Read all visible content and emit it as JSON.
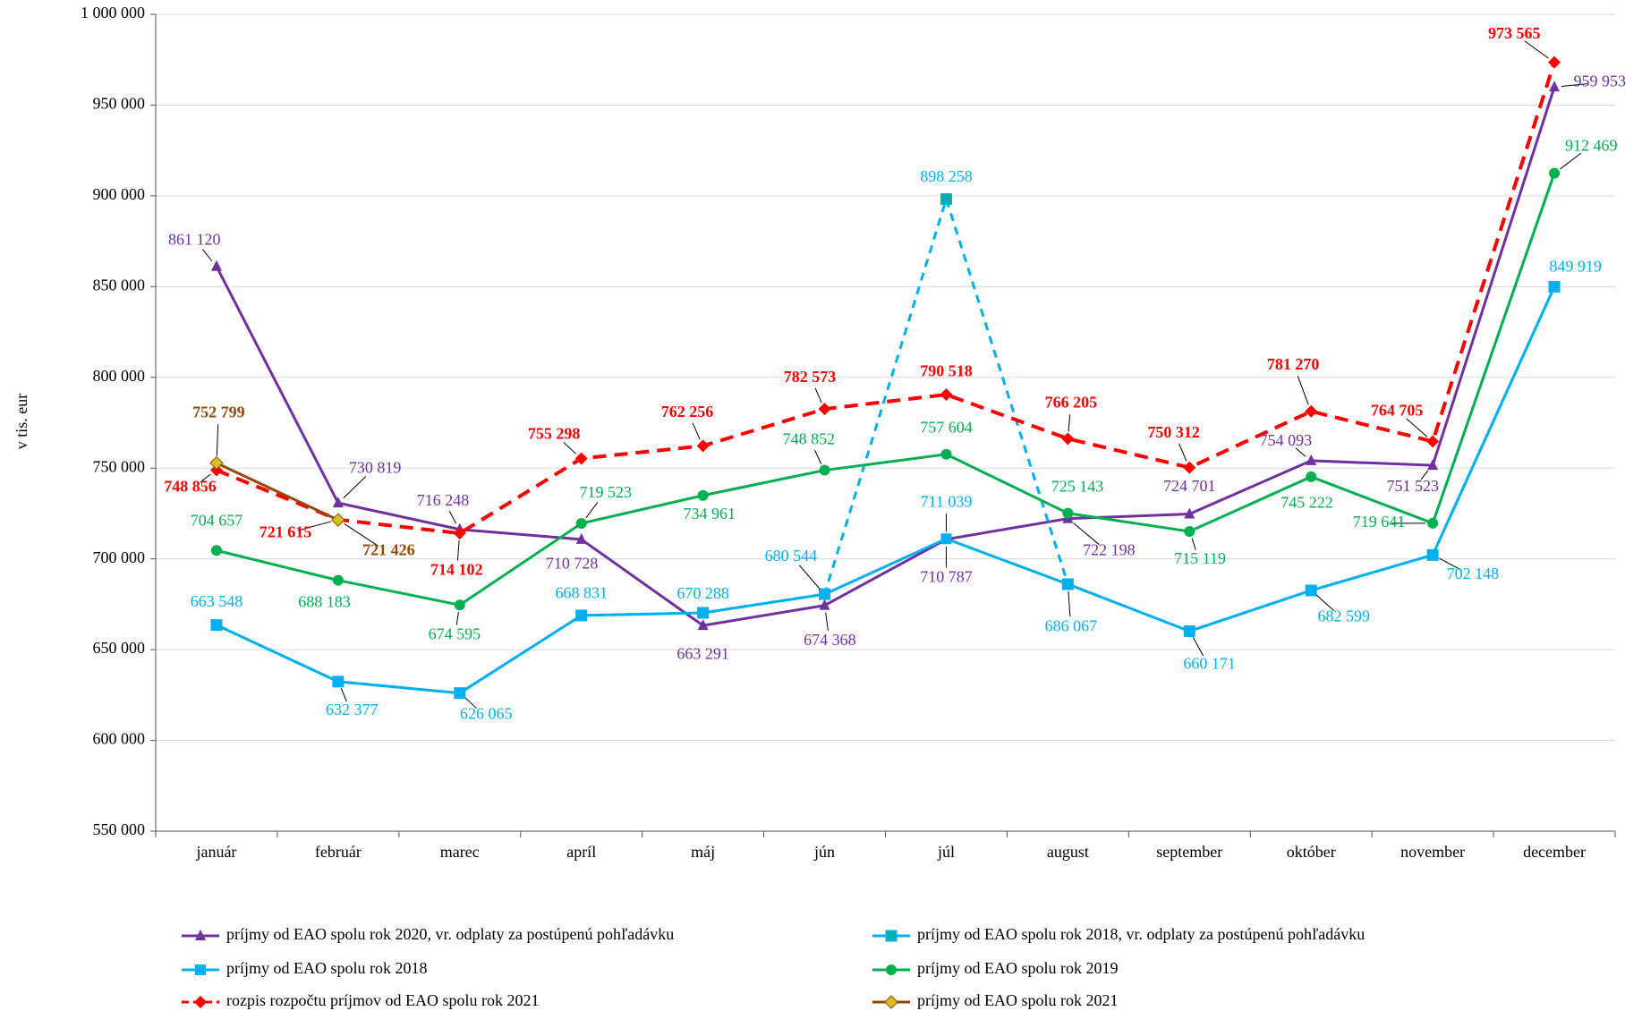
{
  "chart_data": {
    "type": "line",
    "y_label": "v tis. eur",
    "categories": [
      "január",
      "február",
      "marec",
      "apríl",
      "máj",
      "jún",
      "júl",
      "august",
      "september",
      "október",
      "november",
      "december"
    ],
    "ylim": [
      550000,
      1000000
    ],
    "yticks": [
      {
        "value": 550000,
        "label": "550 000"
      },
      {
        "value": 600000,
        "label": "600 000"
      },
      {
        "value": 650000,
        "label": "650 000"
      },
      {
        "value": 700000,
        "label": "700 000"
      },
      {
        "value": 750000,
        "label": "750 000"
      },
      {
        "value": 800000,
        "label": "800 000"
      },
      {
        "value": 850000,
        "label": "850 000"
      },
      {
        "value": 900000,
        "label": "900 000"
      },
      {
        "value": 950000,
        "label": "950 000"
      },
      {
        "value": 1000000,
        "label": "1 000 000"
      }
    ],
    "grid": true,
    "legend": "bottom",
    "series": [
      {
        "name": "príjmy od EAO spolu rok 2020, vr. odplaty za postúpenú pohľadávku",
        "color": "#7030a0",
        "marker": "triangle",
        "dashed": false,
        "bold_labels": false,
        "values": [
          861120,
          730819,
          716248,
          710728,
          663291,
          674368,
          710787,
          722198,
          724701,
          754093,
          751523,
          959953
        ],
        "value_labels": [
          "861 120",
          "730 819",
          "716 248",
          "710 728",
          "663 291",
          "674 368",
          "710 787",
          "722 198",
          "724 701",
          "754 093",
          "751 523",
          "959 953"
        ]
      },
      {
        "name": "príjmy od EAO spolu rok 2018, vr. odplaty za postúpenú pohľadávku",
        "color": "#00b0f0",
        "marker_color": "#00b0b0",
        "marker": "square",
        "dashed": true,
        "bold_labels": false,
        "values": [
          663548,
          632377,
          626065,
          668831,
          670288,
          680544,
          898258,
          686067,
          660171,
          682599,
          702148,
          849919
        ],
        "value_labels": [
          null,
          null,
          null,
          null,
          null,
          null,
          "898 258",
          null,
          null,
          null,
          null,
          null
        ]
      },
      {
        "name": "príjmy od EAO spolu rok 2018",
        "color": "#00b0f0",
        "marker": "square",
        "dashed": false,
        "bold_labels": false,
        "values": [
          663548,
          632377,
          626065,
          668831,
          670288,
          680544,
          711039,
          686067,
          660171,
          682599,
          702148,
          849919
        ],
        "value_labels": [
          "663 548",
          "632 377",
          "626 065",
          "668 831",
          "670 288",
          "680 544",
          "711 039",
          "686 067",
          "660 171",
          "682 599",
          "702 148",
          "849 919"
        ]
      },
      {
        "name": "príjmy od EAO spolu rok 2019",
        "color": "#00b050",
        "marker": "circle",
        "dashed": false,
        "bold_labels": false,
        "values": [
          704657,
          688183,
          674595,
          719523,
          734961,
          748852,
          757604,
          725143,
          715119,
          745222,
          719641,
          912469
        ],
        "value_labels": [
          "704 657",
          "688 183",
          "674 595",
          "719 523",
          "734 961",
          "748 852",
          "757 604",
          "725 143",
          "715 119",
          "745 222",
          "719 641",
          "912 469"
        ]
      },
      {
        "name": "rozpis rozpočtu príjmov od EAO spolu rok 2021",
        "color": "#ff0000",
        "marker": "diamond",
        "dashed": true,
        "bold_labels": true,
        "values": [
          748856,
          721615,
          714102,
          755298,
          762256,
          782573,
          790518,
          766205,
          750312,
          781270,
          764705,
          973565
        ],
        "value_labels": [
          "748 856",
          "721 615",
          "714 102",
          "755 298",
          "762 256",
          "782 573",
          "790 518",
          "766 205",
          "750 312",
          "781 270",
          "764 705",
          "973 565"
        ]
      },
      {
        "name": "príjmy od EAO spolu rok 2021",
        "color": "#974706",
        "marker_color": "#d4c020",
        "marker": "diamond",
        "dashed": false,
        "bold_labels": true,
        "values": [
          752799,
          721426,
          null,
          null,
          null,
          null,
          null,
          null,
          null,
          null,
          null,
          null
        ],
        "value_labels": [
          "752 799",
          "721 426",
          null,
          null,
          null,
          null,
          null,
          null,
          null,
          null,
          null,
          null
        ]
      }
    ]
  }
}
